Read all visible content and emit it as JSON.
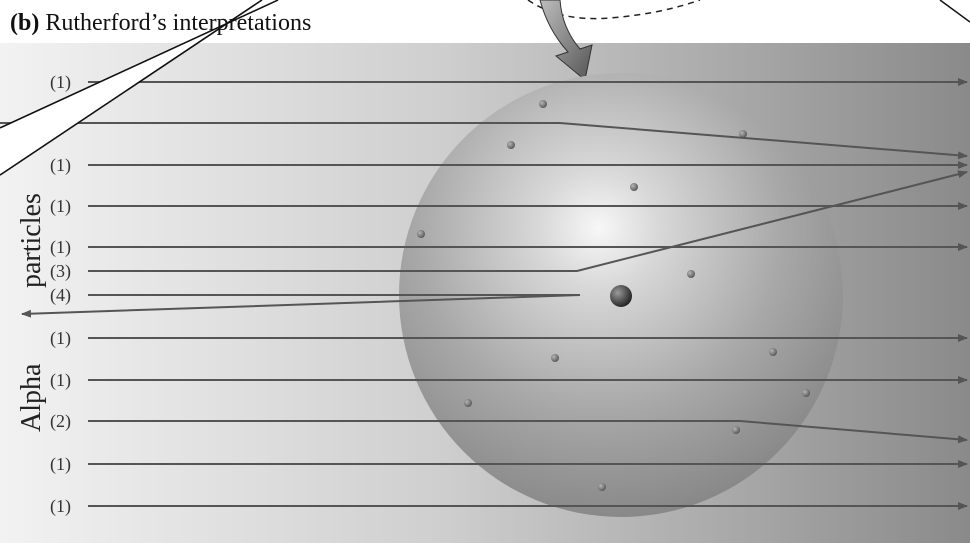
{
  "title": {
    "prefix": "(b)",
    "text": "Rutherford’s interpretations"
  },
  "side_label": {
    "bottom": "Alpha",
    "top": "particles"
  },
  "rows": [
    {
      "label": "(1)",
      "type": "straight"
    },
    {
      "label": "",
      "type": "deflect-down"
    },
    {
      "label": "(1)",
      "type": "straight"
    },
    {
      "label": "(1)",
      "type": "straight"
    },
    {
      "label": "(1)",
      "type": "straight"
    },
    {
      "label": "(3)",
      "type": "deflect-up"
    },
    {
      "label": "(4)",
      "type": "reflect"
    },
    {
      "label": "(1)",
      "type": "straight"
    },
    {
      "label": "(1)",
      "type": "straight"
    },
    {
      "label": "(2)",
      "type": "slight-deflect"
    },
    {
      "label": "(1)",
      "type": "straight"
    },
    {
      "label": "(1)",
      "type": "straight"
    }
  ],
  "colors": {
    "beam": "#5a5a5a",
    "atom": "#9a9a9a",
    "nucleus": "#3a3a3a",
    "background_left": "#f0f0f0",
    "background_right": "#8c8c8c"
  }
}
